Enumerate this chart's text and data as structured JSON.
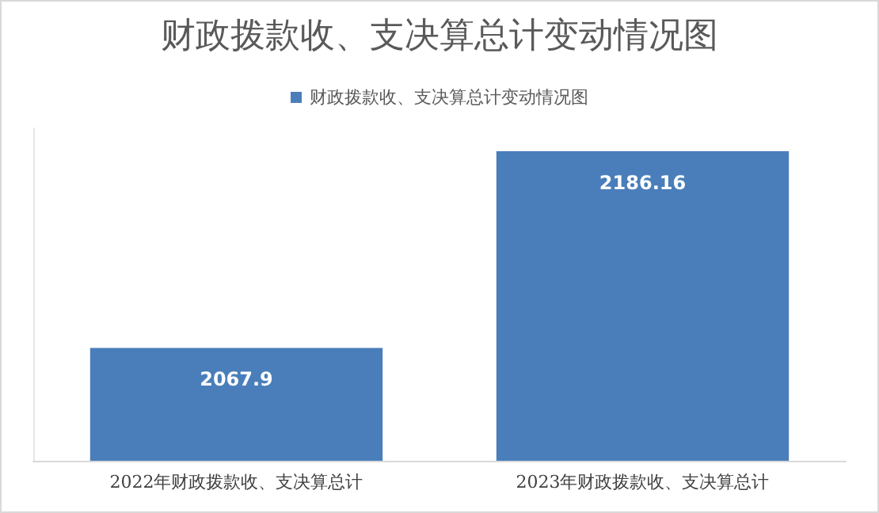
{
  "chart_data": {
    "type": "bar",
    "title": "财政拨款收、支决算总计变动情况图",
    "categories": [
      "2022年财政拨款收、支决算总计",
      "2023年财政拨款收、支决算总计"
    ],
    "series": [
      {
        "name": "财政拨款收、支决算总计变动情况图",
        "color": "#4a7ebb",
        "values": [
          2067.9,
          2186.16
        ]
      }
    ],
    "ylim": [
      2000,
      2200
    ],
    "data_labels": true,
    "legend": "top",
    "grid": false,
    "tick_labels": "x"
  }
}
